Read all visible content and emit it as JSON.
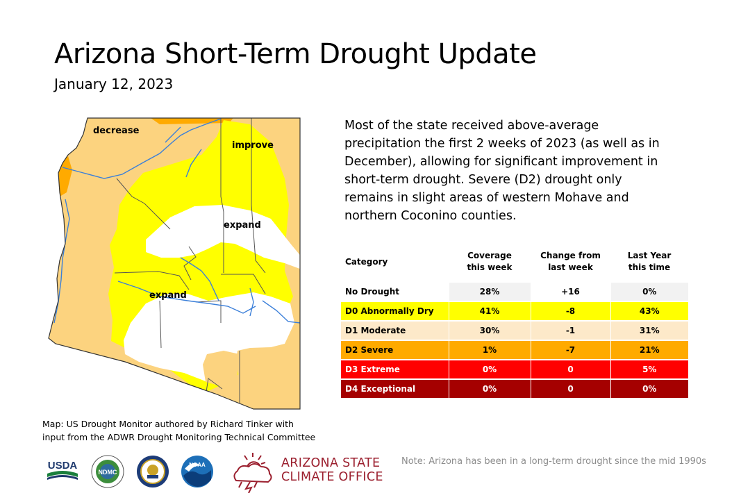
{
  "header": {
    "title": "Arizona Short-Term Drought Update",
    "date": "January 12, 2023"
  },
  "map": {
    "labels": {
      "decrease": "decrease",
      "improve": "improve",
      "expand_north": "expand",
      "expand_south": "expand"
    },
    "colors": {
      "no_drought": "#ffffff",
      "d0": "#ffff00",
      "d1": "#fcd37f",
      "d2": "#ffaa00",
      "rivers": "#3b7fd9",
      "boundaries": "#555555"
    }
  },
  "summary": "Most of the state received above-average precipitation the first 2 weeks of 2023 (as well as in December), allowing for significant improvement in short-term drought. Severe (D2) drought only remains in slight areas of western Mohave and northern Coconino counties.",
  "table": {
    "headers": {
      "category": "Category",
      "coverage_line1": "Coverage",
      "coverage_line2": "this week",
      "change_line1": "Change from",
      "change_line2": "last week",
      "lastyear_line1": "Last Year",
      "lastyear_line2": "this time"
    },
    "rows": [
      {
        "category": "No Drought",
        "coverage": "28%",
        "change": "+16",
        "last_year": "0%",
        "bg": "#ffffff",
        "alt_bg": "#f2f2f2",
        "color": "#000000"
      },
      {
        "category": "D0 Abnormally Dry",
        "coverage": "41%",
        "change": "-8",
        "last_year": "43%",
        "bg": "#ffff00",
        "alt_bg": "#ffff00",
        "color": "#000000"
      },
      {
        "category": "D1 Moderate",
        "coverage": "30%",
        "change": "-1",
        "last_year": "31%",
        "bg": "#fde9c9",
        "alt_bg": "#fde9c9",
        "color": "#000000"
      },
      {
        "category": "D2 Severe",
        "coverage": "1%",
        "change": "-7",
        "last_year": "21%",
        "bg": "#ffaa00",
        "alt_bg": "#ffaa00",
        "color": "#000000"
      },
      {
        "category": "D3 Extreme",
        "coverage": "0%",
        "change": "0",
        "last_year": "5%",
        "bg": "#ff0000",
        "alt_bg": "#ff0000",
        "color": "#ffffff"
      },
      {
        "category": "D4 Exceptional",
        "coverage": "0%",
        "change": "0",
        "last_year": "0%",
        "bg": "#a50000",
        "alt_bg": "#a50000",
        "color": "#ffffff"
      }
    ]
  },
  "credit": {
    "line1": "Map: US Drought Monitor authored by Richard Tinker with",
    "line2": "input from the ADWR Drought Monitoring Technical Committee"
  },
  "logos": {
    "usda": "USDA",
    "ndmc": "NDMC",
    "noaa": "NOAA",
    "asco_line1": "ARIZONA STATE",
    "asco_line2": "CLIMATE OFFICE"
  },
  "note": "Note: Arizona has been in a long-term drought since the mid 1990s"
}
